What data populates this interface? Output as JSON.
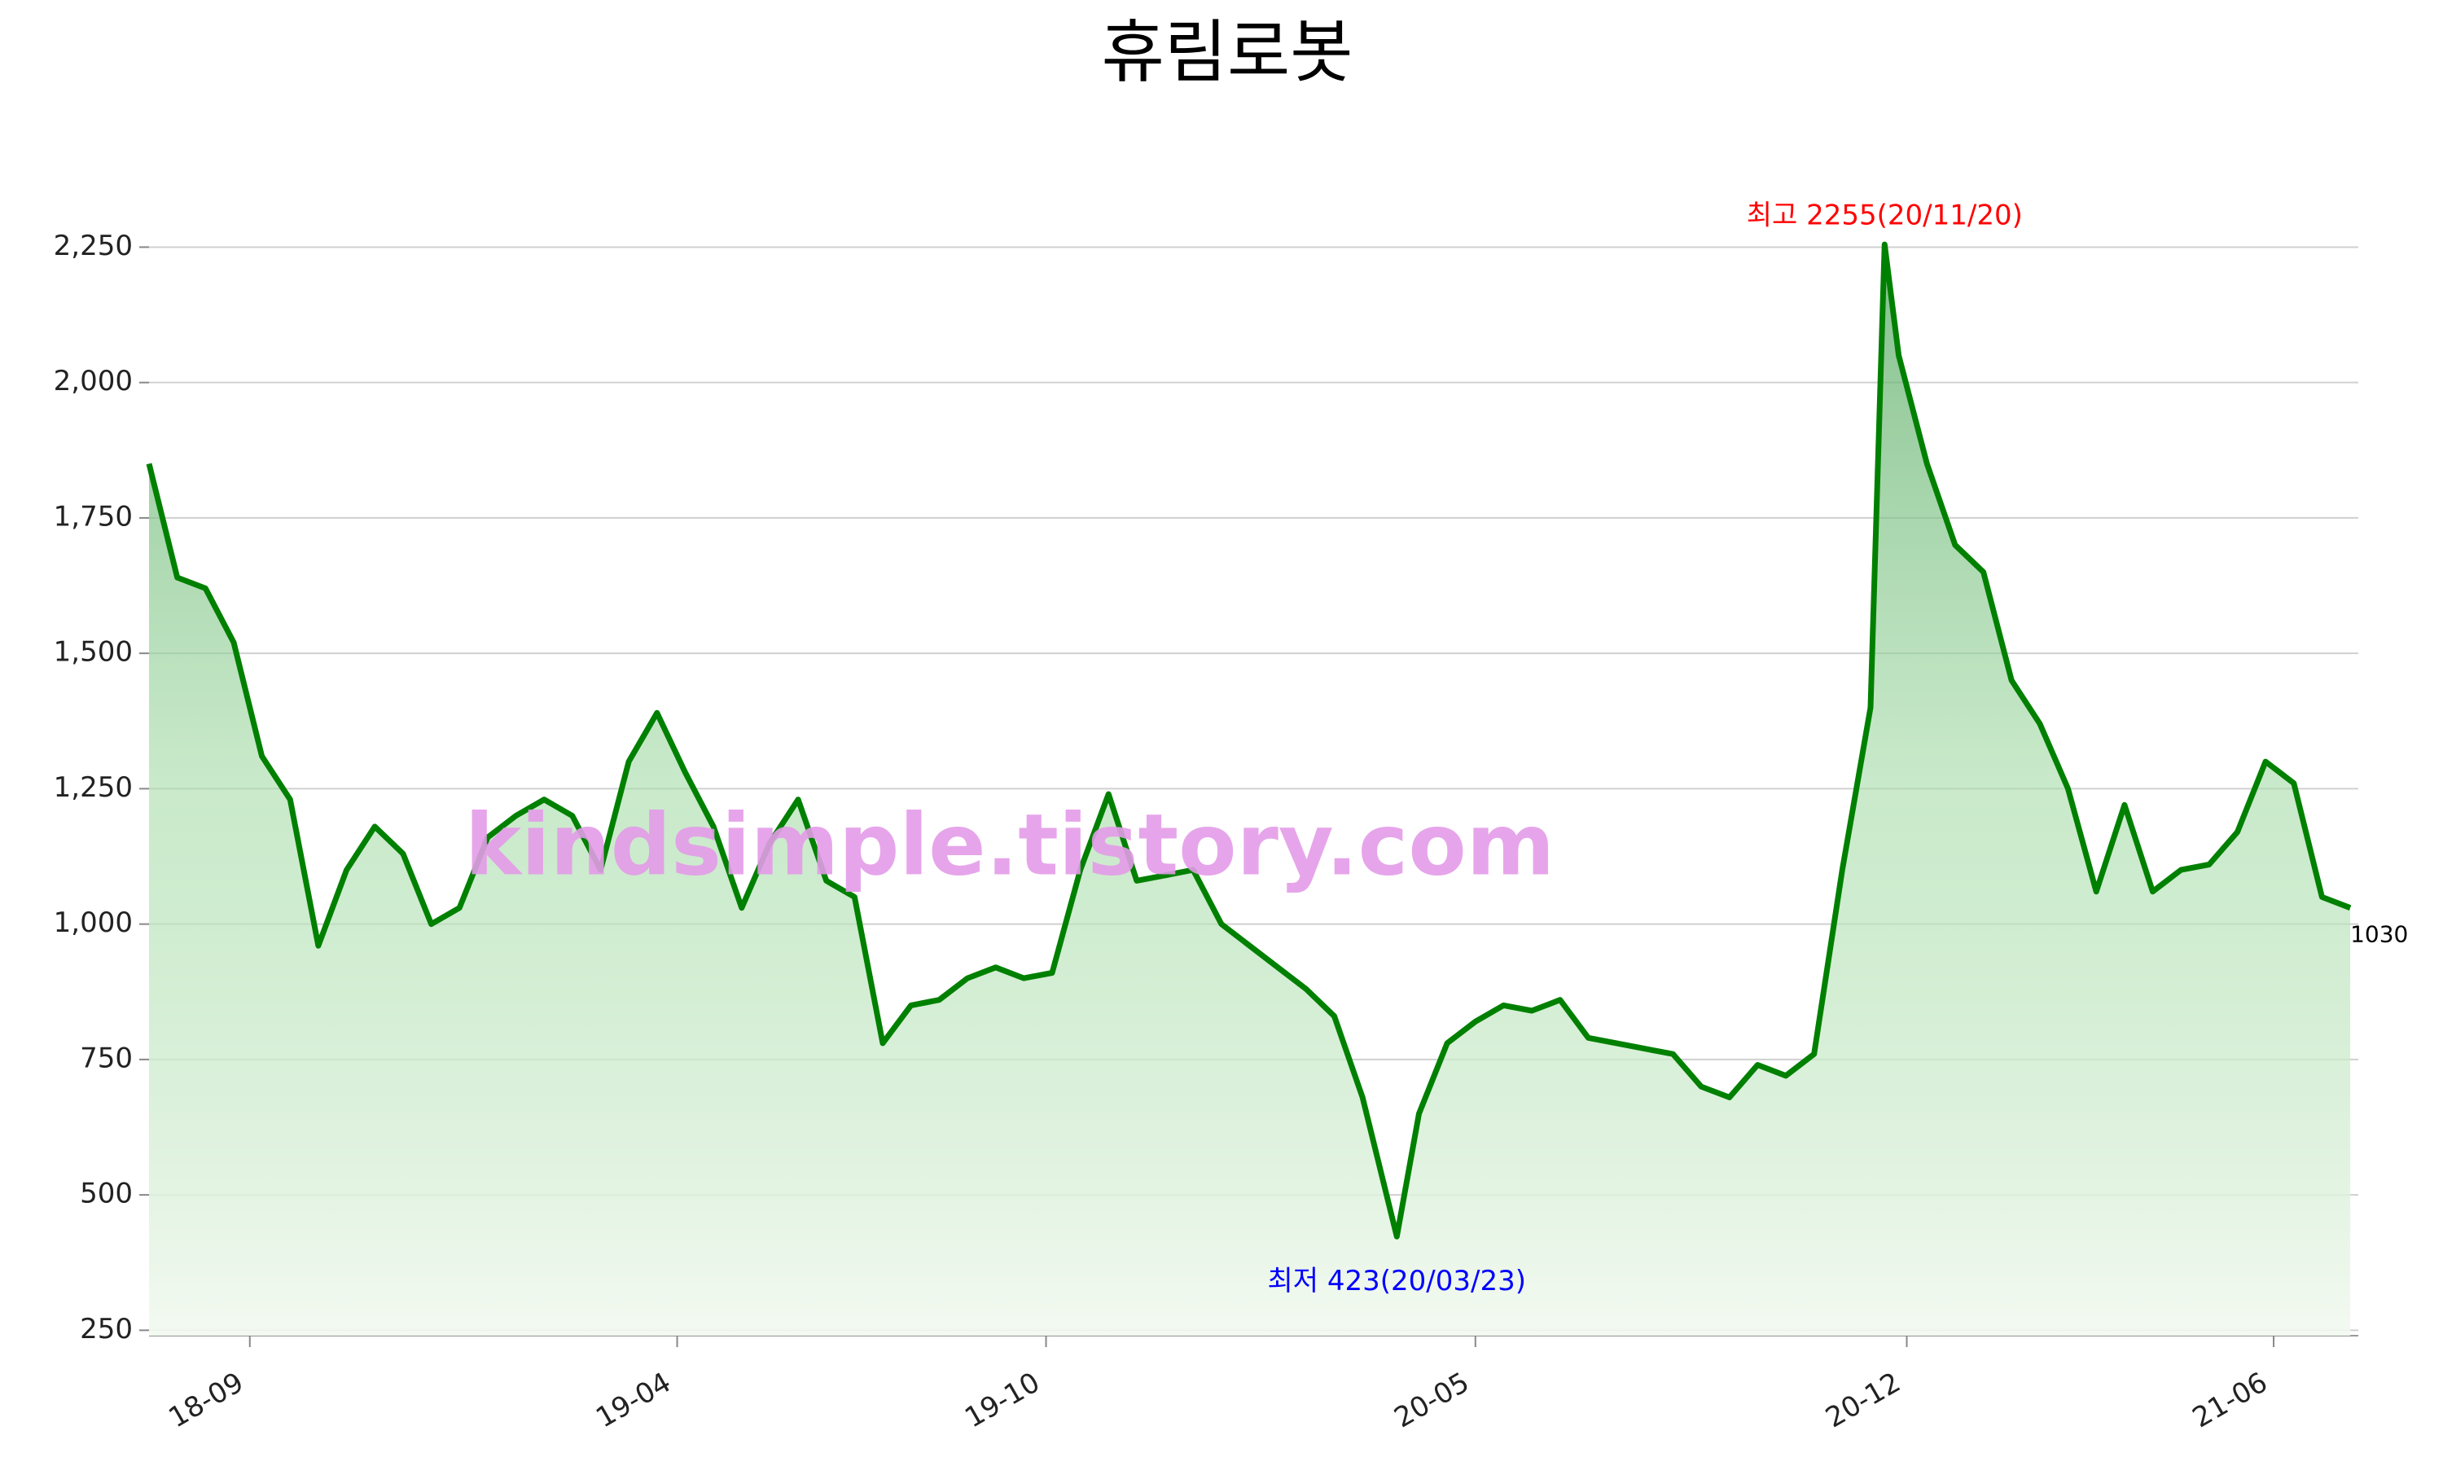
{
  "chart_data": {
    "type": "line",
    "title": "휴림로봇",
    "watermark": "kindsimple.tistory.com",
    "x": [
      "2018-07-13",
      "2018-07-27",
      "2018-08-10",
      "2018-08-24",
      "2018-09-07",
      "2018-09-21",
      "2018-10-05",
      "2018-10-19",
      "2018-11-02",
      "2018-11-16",
      "2018-11-30",
      "2018-12-14",
      "2018-12-28",
      "2019-01-11",
      "2019-01-25",
      "2019-02-08",
      "2019-02-22",
      "2019-03-08",
      "2019-03-22",
      "2019-04-05",
      "2019-04-19",
      "2019-05-03",
      "2019-05-17",
      "2019-05-31",
      "2019-06-14",
      "2019-06-28",
      "2019-07-12",
      "2019-07-26",
      "2019-08-09",
      "2019-08-23",
      "2019-09-06",
      "2019-09-20",
      "2019-10-04",
      "2019-10-18",
      "2019-11-01",
      "2019-11-15",
      "2019-11-29",
      "2019-12-13",
      "2019-12-27",
      "2020-01-10",
      "2020-01-24",
      "2020-02-07",
      "2020-02-21",
      "2020-03-06",
      "2020-03-23",
      "2020-04-03",
      "2020-04-17",
      "2020-05-01",
      "2020-05-15",
      "2020-05-29",
      "2020-06-12",
      "2020-06-26",
      "2020-07-10",
      "2020-07-24",
      "2020-08-07",
      "2020-08-21",
      "2020-09-04",
      "2020-09-18",
      "2020-10-02",
      "2020-10-16",
      "2020-10-30",
      "2020-11-13",
      "2020-11-20",
      "2020-11-27",
      "2020-12-11",
      "2020-12-25",
      "2021-01-08",
      "2021-01-22",
      "2021-02-05",
      "2021-02-19",
      "2021-03-05",
      "2021-03-19",
      "2021-04-02",
      "2021-04-16",
      "2021-04-30",
      "2021-05-14",
      "2021-05-28",
      "2021-06-11",
      "2021-06-25",
      "2021-07-09"
    ],
    "values": [
      1850,
      1640,
      1620,
      1520,
      1310,
      1230,
      960,
      1100,
      1180,
      1130,
      1000,
      1030,
      1160,
      1200,
      1230,
      1200,
      1100,
      1300,
      1390,
      1280,
      1180,
      1030,
      1150,
      1230,
      1080,
      1050,
      780,
      850,
      860,
      900,
      920,
      900,
      910,
      1100,
      1240,
      1080,
      1090,
      1100,
      1000,
      960,
      920,
      880,
      830,
      680,
      423,
      650,
      780,
      820,
      850,
      840,
      860,
      790,
      780,
      770,
      760,
      700,
      680,
      740,
      720,
      760,
      1100,
      1400,
      2255,
      2050,
      1850,
      1700,
      1650,
      1450,
      1370,
      1250,
      1060,
      1220,
      1060,
      1100,
      1110,
      1170,
      1300,
      1260,
      1050,
      1030
    ],
    "color": "#008000",
    "xlim": [
      "2018-07-13",
      "2021-07-13"
    ],
    "xticks": [
      {
        "value": "2018-09-01",
        "label": "18-09"
      },
      {
        "value": "2019-04-01",
        "label": "19-04"
      },
      {
        "value": "2019-10-01",
        "label": "19-10"
      },
      {
        "value": "2020-05-01",
        "label": "20-05"
      },
      {
        "value": "2020-12-01",
        "label": "20-12"
      },
      {
        "value": "2021-06-01",
        "label": "21-06"
      }
    ],
    "ylim": [
      240,
      2380
    ],
    "yticks": [
      {
        "value": 250,
        "label": "250"
      },
      {
        "value": 500,
        "label": "500"
      },
      {
        "value": 750,
        "label": "750"
      },
      {
        "value": 1000,
        "label": "1,000"
      },
      {
        "value": 1250,
        "label": "1,250"
      },
      {
        "value": 1500,
        "label": "1,500"
      },
      {
        "value": 1750,
        "label": "1,750"
      },
      {
        "value": 2000,
        "label": "2,000"
      },
      {
        "value": 2250,
        "label": "2,250"
      }
    ],
    "grid": true,
    "annotations": [
      {
        "text": "최고 2255(20/11/20)",
        "index": 62,
        "color": "#ff0000",
        "position": "above"
      },
      {
        "text": "최저 423(20/03/23)",
        "index": 44,
        "color": "#0000ff",
        "position": "below"
      }
    ]
  }
}
